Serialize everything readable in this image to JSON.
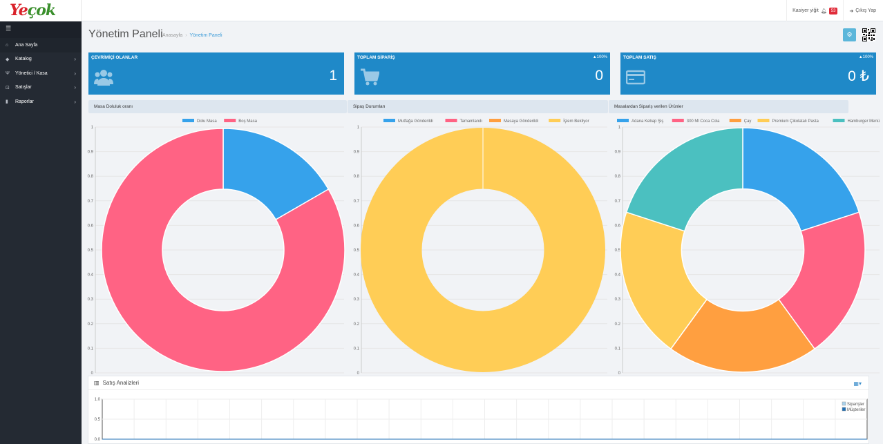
{
  "brand": {
    "logo_part1": "Ye",
    "logo_part2": "çok"
  },
  "topbar": {
    "user_name": "Kasiyer yiğit",
    "notification_count": "53",
    "logout_label": "Çıkış Yap"
  },
  "sidebar": {
    "toggle_icon": "☰",
    "items": [
      {
        "label": "Ana Sayfa",
        "icon": "home-icon"
      },
      {
        "label": "Katalog",
        "icon": "tags-icon"
      },
      {
        "label": "Yönetici / Kasa",
        "icon": "cutlery-icon"
      },
      {
        "label": "Satışlar",
        "icon": "cart-icon"
      },
      {
        "label": "Raporlar",
        "icon": "book-icon"
      }
    ]
  },
  "page": {
    "title": "Yönetim Paneli",
    "breadcrumb": [
      "Anasayfa",
      "Yönetim Paneli"
    ]
  },
  "stats": [
    {
      "title": "ÇEVRİMİÇİ OLANLAR",
      "value": "1",
      "pct": "",
      "icon": "users-icon"
    },
    {
      "title": "TOPLAM SİPARİŞ",
      "value": "0",
      "pct": "▲100%",
      "icon": "cart-icon"
    },
    {
      "title": "TOPLAM SATIŞ",
      "value": "0 ₺",
      "pct": "▲100%",
      "icon": "credit-card-icon"
    }
  ],
  "panels": [
    "Masa Doluluk oranı",
    "Sipaş Durumları",
    "Masalardan Sipariş verilen Ürünler"
  ],
  "colors": {
    "blue": "#36a2eb",
    "red": "#ff6384",
    "orange": "#ff9f40",
    "yellow": "#ffcd56",
    "teal": "#4bc0c0",
    "stat_bg": "#1f89c8"
  },
  "chart_data": [
    {
      "type": "pie",
      "labels": [
        "Dolu Masa",
        "Boş Masa"
      ],
      "values": [
        1,
        5
      ],
      "colors": [
        "#36a2eb",
        "#ff6384"
      ],
      "y_ticks": [
        "0",
        "0.1",
        "0.2",
        "0.3",
        "0.4",
        "0.5",
        "0.6",
        "0.7",
        "0.8",
        "0.9",
        "1"
      ]
    },
    {
      "type": "pie",
      "labels": [
        "Mutfağa Gönderildi",
        "Tamamlandı",
        "Masaya Gönderildi",
        "İşlem Bekliyor"
      ],
      "values": [
        0,
        0,
        0,
        1
      ],
      "colors": [
        "#36a2eb",
        "#ff6384",
        "#ff9f40",
        "#ffcd56"
      ],
      "y_ticks": [
        "0",
        "0.1",
        "0.2",
        "0.3",
        "0.4",
        "0.5",
        "0.6",
        "0.7",
        "0.8",
        "0.9",
        "1"
      ]
    },
    {
      "type": "pie",
      "labels": [
        "Adana Kebap Şiş",
        "300 Ml Coca Cola",
        "Çay",
        "Premium Çikolatalı Pasta",
        "Hamburger Menü"
      ],
      "values": [
        1,
        1,
        1,
        1,
        1
      ],
      "colors": [
        "#36a2eb",
        "#ff6384",
        "#ff9f40",
        "#ffcd56",
        "#4bc0c0"
      ],
      "y_ticks": [
        "0",
        "0.1",
        "0.2",
        "0.3",
        "0.4",
        "0.5",
        "0.6",
        "0.7",
        "0.8",
        "0.9",
        "1"
      ]
    },
    {
      "type": "line",
      "title": "Satış Analizleri",
      "series": [
        {
          "name": "Siparişler",
          "color": "#a9d2ec",
          "values": []
        },
        {
          "name": "Müşteriler",
          "color": "#1f6fb5",
          "values": []
        }
      ],
      "y_ticks": [
        "0.0",
        "0.5",
        "1.0"
      ],
      "ylim": [
        0,
        1
      ]
    }
  ]
}
